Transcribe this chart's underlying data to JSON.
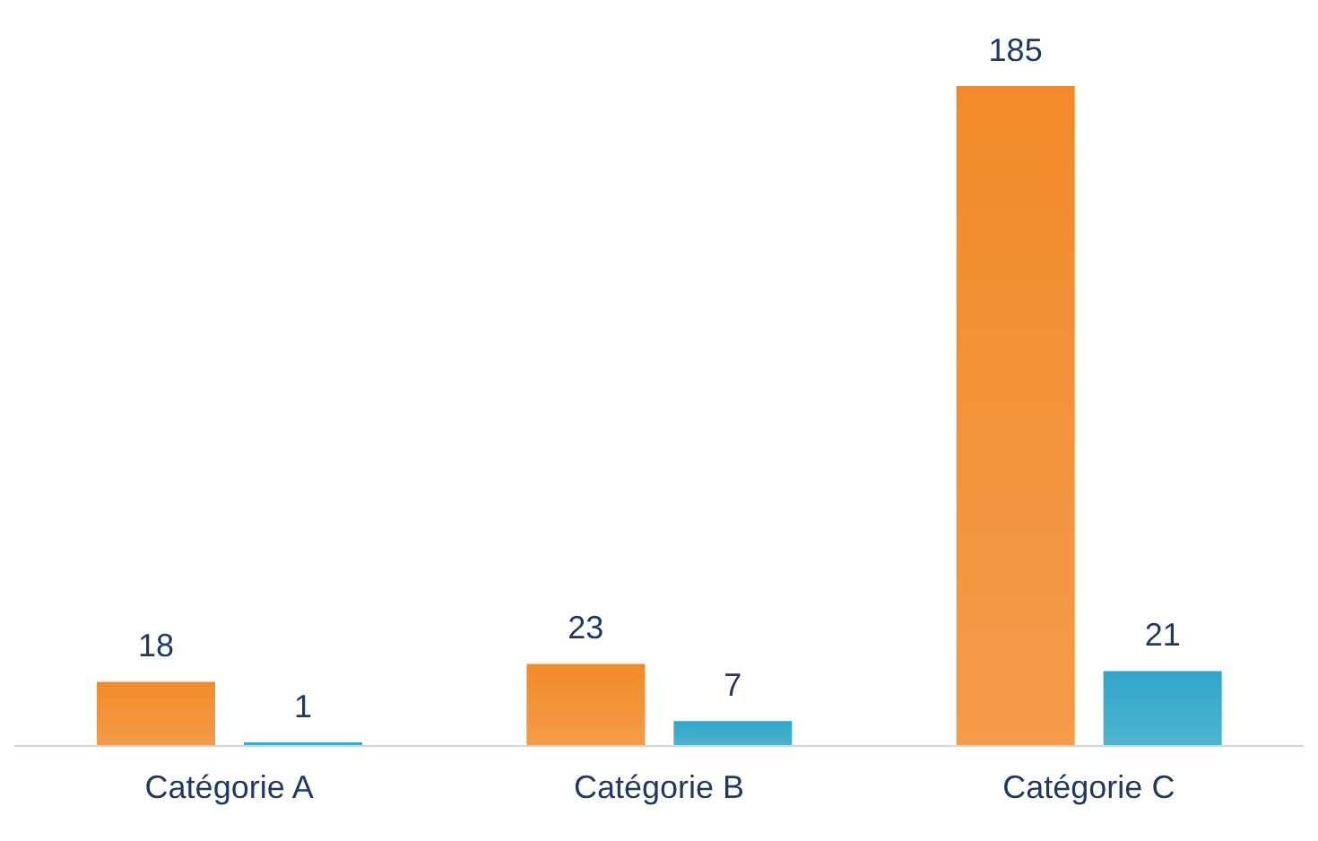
{
  "chart_data": {
    "type": "bar",
    "categories": [
      "Catégorie A",
      "Catégorie B",
      "Catégorie C"
    ],
    "series": [
      {
        "color": "#f28a2a",
        "values": [
          18,
          23,
          185
        ]
      },
      {
        "color": "#2fa6c8",
        "values": [
          1,
          7,
          21
        ]
      }
    ],
    "data_labels": true,
    "grid": false,
    "legend": false
  }
}
